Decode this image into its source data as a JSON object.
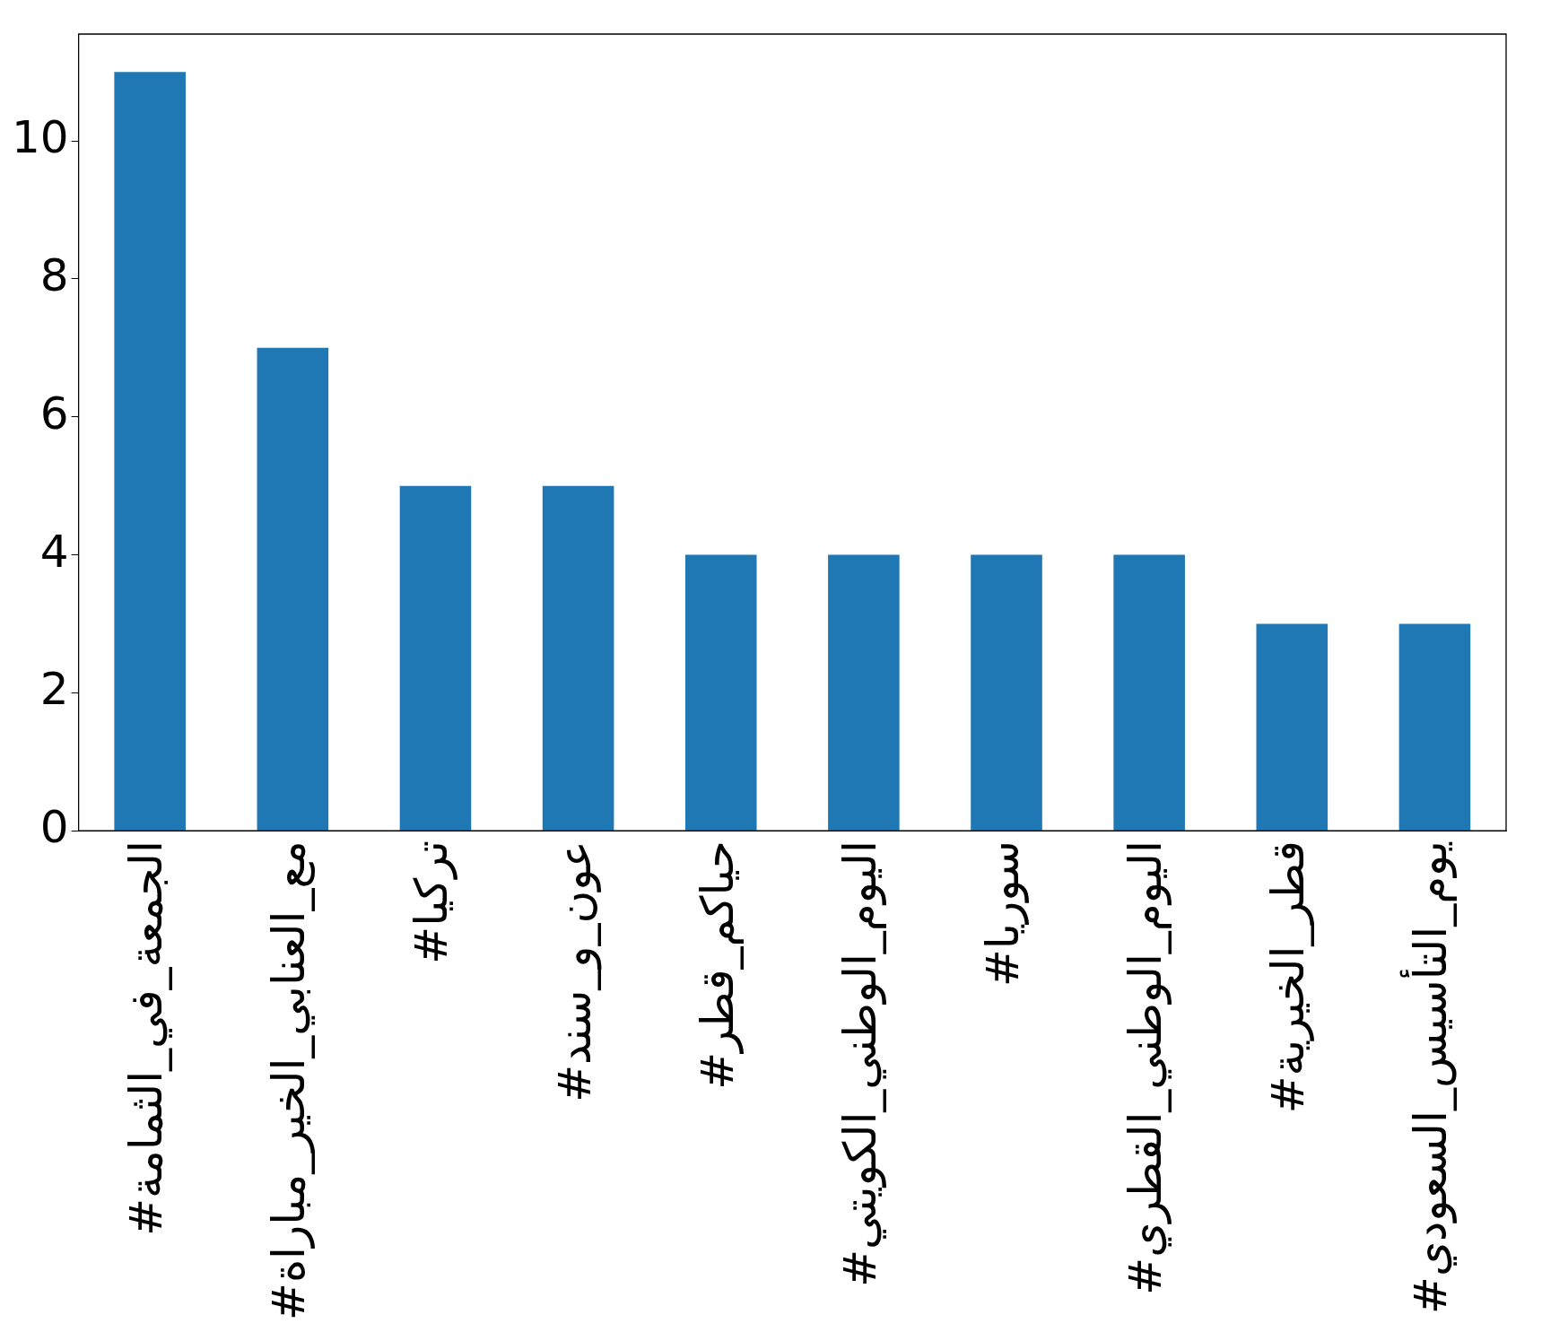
{
  "chart_data": {
    "type": "bar",
    "categories": [
      "#الجمعة_في_الثمامة",
      "#مع_العنابي_الخير_مباراة",
      "#تركيا",
      "#عون_و_سند",
      "#حياكم_قطر",
      "#اليوم_الوطني_الكويتي",
      "#سوريا",
      "#اليوم_الوطني_القطري",
      "#قطر_الخيرية",
      "#يوم_التأسيس_السعودي"
    ],
    "values": [
      11,
      7,
      5,
      5,
      4,
      4,
      4,
      4,
      3,
      3
    ],
    "color": "#1f77b4",
    "ylim": [
      0,
      11.55
    ],
    "yticks": [
      0,
      2,
      4,
      6,
      8,
      10
    ],
    "grid": false,
    "legend": false
  }
}
